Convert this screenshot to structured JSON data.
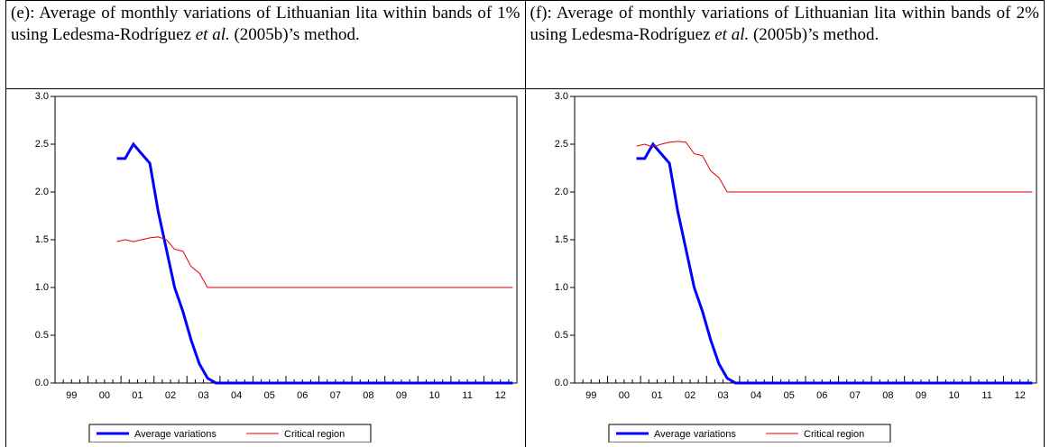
{
  "chart_data": [
    {
      "type": "line",
      "title": [
        "(e): Average of monthly variations of Lithuanian lita within bands of 1% using Ledesma-Rodríguez ",
        "et al.",
        " (2005b)’s method."
      ],
      "categories": [
        null,
        "99",
        null,
        null,
        null,
        "00",
        null,
        null,
        null,
        "01",
        null,
        null,
        null,
        "02",
        null,
        null,
        null,
        "03",
        null,
        null,
        null,
        "04",
        null,
        null,
        null,
        "05",
        null,
        null,
        null,
        "06",
        null,
        null,
        null,
        "07",
        null,
        null,
        null,
        "08",
        null,
        null,
        null,
        "09",
        null,
        null,
        null,
        "10",
        null,
        null,
        null,
        "11",
        null,
        null,
        null,
        "12",
        null,
        null
      ],
      "series": [
        {
          "name": "Average variations",
          "color": "#0000ff",
          "values": [
            null,
            null,
            null,
            null,
            null,
            null,
            null,
            2.35,
            2.35,
            2.5,
            2.4,
            2.3,
            1.8,
            1.4,
            1.0,
            0.75,
            0.45,
            0.2,
            0.05,
            0.0,
            0,
            0,
            0,
            0,
            0,
            0,
            0,
            0,
            0,
            0,
            0,
            0,
            0,
            0,
            0,
            0,
            0,
            0,
            0,
            0,
            0,
            0,
            0,
            0,
            0,
            0,
            0,
            0,
            0,
            0,
            0,
            0,
            0,
            0,
            0,
            0
          ]
        },
        {
          "name": "Critical region",
          "color": "#e00000",
          "values": [
            null,
            null,
            null,
            null,
            null,
            null,
            null,
            1.48,
            1.5,
            1.48,
            1.5,
            1.52,
            1.53,
            1.5,
            1.4,
            1.38,
            1.22,
            1.15,
            1.0,
            1.0,
            1,
            1,
            1,
            1,
            1,
            1,
            1,
            1,
            1,
            1,
            1,
            1,
            1,
            1,
            1,
            1,
            1,
            1,
            1,
            1,
            1,
            1,
            1,
            1,
            1,
            1,
            1,
            1,
            1,
            1,
            1,
            1,
            1,
            1,
            1,
            1
          ]
        }
      ],
      "ylim": [
        0,
        3
      ],
      "yticks": [
        {
          "value": 0,
          "label": "0.0"
        },
        0.5,
        {
          "value": 1,
          "label": "1.0"
        },
        1.5,
        {
          "value": 2,
          "label": "2.0"
        },
        2.5,
        {
          "value": 3,
          "label": "3.0"
        }
      ]
    },
    {
      "type": "line",
      "title": [
        "(f): Average of monthly variations of Lithuanian lita within bands of 2% using Ledesma-Rodríguez ",
        "et al.",
        " (2005b)’s method."
      ],
      "categories": [
        null,
        "99",
        null,
        null,
        null,
        "00",
        null,
        null,
        null,
        "01",
        null,
        null,
        null,
        "02",
        null,
        null,
        null,
        "03",
        null,
        null,
        null,
        "04",
        null,
        null,
        null,
        "05",
        null,
        null,
        null,
        "06",
        null,
        null,
        null,
        "07",
        null,
        null,
        null,
        "08",
        null,
        null,
        null,
        "09",
        null,
        null,
        null,
        "10",
        null,
        null,
        null,
        "11",
        null,
        null,
        null,
        "12",
        null,
        null
      ],
      "series": [
        {
          "name": "Average variations",
          "color": "#0000ff",
          "values": [
            null,
            null,
            null,
            null,
            null,
            null,
            null,
            2.35,
            2.35,
            2.5,
            2.4,
            2.3,
            1.8,
            1.4,
            1.0,
            0.75,
            0.45,
            0.2,
            0.05,
            0.0,
            0,
            0,
            0,
            0,
            0,
            0,
            0,
            0,
            0,
            0,
            0,
            0,
            0,
            0,
            0,
            0,
            0,
            0,
            0,
            0,
            0,
            0,
            0,
            0,
            0,
            0,
            0,
            0,
            0,
            0,
            0,
            0,
            0,
            0,
            0,
            0
          ]
        },
        {
          "name": "Critical region",
          "color": "#e00000",
          "values": [
            null,
            null,
            null,
            null,
            null,
            null,
            null,
            2.48,
            2.5,
            2.47,
            2.5,
            2.52,
            2.53,
            2.52,
            2.4,
            2.38,
            2.22,
            2.15,
            2.0,
            2.0,
            2,
            2,
            2,
            2,
            2,
            2,
            2,
            2,
            2,
            2,
            2,
            2,
            2,
            2,
            2,
            2,
            2,
            2,
            2,
            2,
            2,
            2,
            2,
            2,
            2,
            2,
            2,
            2,
            2,
            2,
            2,
            2,
            2,
            2,
            2,
            2
          ]
        }
      ],
      "ylim": [
        0,
        3
      ],
      "yticks": [
        {
          "value": 0,
          "label": "0.0"
        },
        0.5,
        {
          "value": 1,
          "label": "1.0"
        },
        1.5,
        {
          "value": 2,
          "label": "2.0"
        },
        2.5,
        {
          "value": 3,
          "label": "3.0"
        }
      ]
    }
  ]
}
